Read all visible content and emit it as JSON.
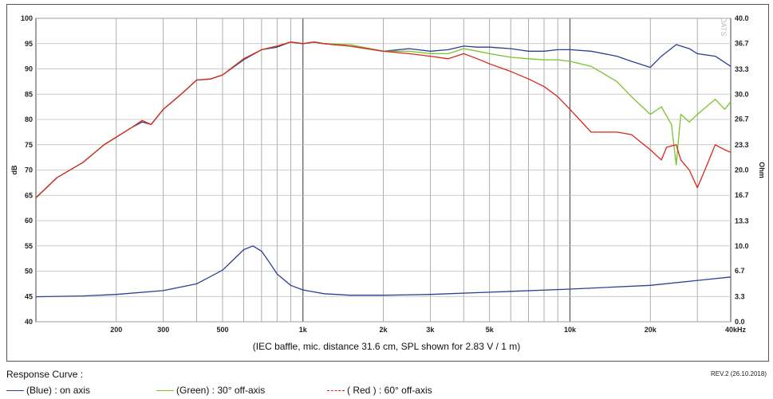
{
  "chart_data": {
    "type": "line",
    "caption": "(IEC baffle, mic. distance 31.6 cm, SPL shown for 2.83 V / 1 m)",
    "xscale": "log",
    "xlim": [
      100,
      40000
    ],
    "x_tick_labels": [
      {
        "v": 200,
        "t": "200"
      },
      {
        "v": 300,
        "t": "300"
      },
      {
        "v": 500,
        "t": "500"
      },
      {
        "v": 1000,
        "t": "1k"
      },
      {
        "v": 2000,
        "t": "2k"
      },
      {
        "v": 3000,
        "t": "3k"
      },
      {
        "v": 5000,
        "t": "5k"
      },
      {
        "v": 10000,
        "t": "10k"
      },
      {
        "v": 20000,
        "t": "20k"
      },
      {
        "v": 40000,
        "t": "40kHz"
      }
    ],
    "ylabel": "dB",
    "ylim": [
      40,
      100
    ],
    "y_ticks": [
      40,
      45,
      50,
      55,
      60,
      65,
      70,
      75,
      80,
      85,
      90,
      95,
      100
    ],
    "y2label": "Ohm",
    "y2lim": [
      0,
      40
    ],
    "y2_ticks": [
      "0.0",
      "3.3",
      "6.7",
      "10.0",
      "13.3",
      "16.7",
      "20.0",
      "23.3",
      "26.7",
      "30.0",
      "33.3",
      "36.7",
      "40.0"
    ],
    "grid": true,
    "series": [
      {
        "name": "(Blue)  : on axis",
        "color": "#2b3f94",
        "axis": "left",
        "x": [
          100,
          120,
          150,
          180,
          200,
          230,
          250,
          270,
          300,
          350,
          400,
          450,
          500,
          600,
          700,
          800,
          900,
          1000,
          1100,
          1200,
          1500,
          2000,
          2500,
          3000,
          3500,
          4000,
          4500,
          5000,
          6000,
          7000,
          8000,
          9000,
          10000,
          12000,
          15000,
          17000,
          20000,
          22000,
          25000,
          28000,
          30000,
          35000,
          40000
        ],
        "y": [
          64.5,
          68.5,
          71.5,
          75.0,
          76.5,
          78.5,
          79.5,
          79.0,
          82.0,
          85.0,
          87.8,
          88.0,
          88.8,
          91.8,
          93.8,
          94.3,
          95.3,
          95.0,
          95.3,
          95.0,
          94.5,
          93.5,
          94.0,
          93.5,
          93.8,
          94.5,
          94.3,
          94.3,
          94.0,
          93.5,
          93.5,
          93.8,
          93.8,
          93.5,
          92.5,
          91.5,
          90.3,
          92.5,
          94.8,
          94.0,
          93.0,
          92.5,
          90.5
        ]
      },
      {
        "name": "(Green) : 30° off-axis",
        "color": "#7cc22b",
        "axis": "left",
        "x": [
          100,
          120,
          150,
          180,
          200,
          230,
          250,
          270,
          300,
          350,
          400,
          450,
          500,
          600,
          700,
          800,
          900,
          1000,
          1100,
          1200,
          1500,
          2000,
          2500,
          3000,
          3500,
          4000,
          4500,
          5000,
          6000,
          7000,
          8000,
          9000,
          10000,
          12000,
          15000,
          17000,
          20000,
          22000,
          24000,
          25000,
          26000,
          28000,
          30000,
          35000,
          38000,
          40000
        ],
        "y": [
          64.5,
          68.5,
          71.5,
          75.0,
          76.5,
          78.5,
          79.8,
          79.0,
          82.0,
          85.0,
          87.8,
          88.0,
          88.8,
          92.0,
          93.8,
          94.5,
          95.3,
          95.0,
          95.3,
          95.0,
          94.8,
          93.5,
          93.5,
          93.0,
          93.0,
          94.0,
          93.5,
          93.0,
          92.3,
          92.0,
          91.8,
          91.8,
          91.5,
          90.5,
          87.5,
          84.5,
          81.0,
          82.5,
          79.0,
          71.0,
          81.0,
          79.5,
          81.0,
          84.0,
          82.0,
          83.5
        ]
      },
      {
        "name": "( Red )  : 60° off-axis",
        "color": "#d9261c",
        "axis": "left",
        "x": [
          100,
          120,
          150,
          180,
          200,
          230,
          250,
          270,
          300,
          350,
          400,
          450,
          500,
          600,
          700,
          800,
          900,
          1000,
          1100,
          1200,
          1500,
          2000,
          2500,
          3000,
          3500,
          4000,
          4500,
          5000,
          6000,
          7000,
          8000,
          9000,
          10000,
          12000,
          15000,
          17000,
          20000,
          22000,
          23000,
          25000,
          26000,
          28000,
          30000,
          32000,
          35000,
          38000,
          40000
        ],
        "y": [
          64.5,
          68.5,
          71.5,
          75.0,
          76.5,
          78.5,
          79.8,
          79.0,
          82.0,
          85.0,
          87.8,
          88.0,
          88.8,
          92.0,
          93.8,
          94.5,
          95.3,
          95.0,
          95.3,
          95.0,
          94.5,
          93.5,
          93.0,
          92.5,
          92.0,
          93.0,
          92.0,
          91.0,
          89.5,
          88.0,
          86.5,
          84.5,
          82.0,
          77.5,
          77.5,
          77.0,
          74.0,
          72.0,
          74.5,
          75.0,
          72.0,
          70.0,
          66.5,
          70.0,
          75.0,
          74.0,
          73.5
        ]
      },
      {
        "name": "impedance",
        "color": "#2b3f94",
        "axis": "right",
        "x": [
          100,
          150,
          200,
          300,
          400,
          500,
          550,
          600,
          650,
          700,
          750,
          800,
          900,
          1000,
          1200,
          1500,
          2000,
          3000,
          5000,
          10000,
          20000,
          40000
        ],
        "y": [
          3.3,
          3.4,
          3.6,
          4.1,
          5.0,
          6.8,
          8.2,
          9.5,
          10.0,
          9.3,
          7.8,
          6.3,
          4.8,
          4.2,
          3.7,
          3.5,
          3.5,
          3.6,
          3.9,
          4.3,
          4.8,
          5.9
        ]
      }
    ]
  },
  "watermark": "DATS",
  "legend": {
    "title": "Response Curve :",
    "revision": "REV.2 (26.10.2018)",
    "items": [
      {
        "label": "(Blue)  : on axis",
        "color": "#2b3f94"
      },
      {
        "label": "(Green) : 30° off-axis",
        "color": "#7cc22b"
      },
      {
        "label": "( Red )  : 60° off-axis",
        "color": "#d9261c"
      }
    ]
  }
}
